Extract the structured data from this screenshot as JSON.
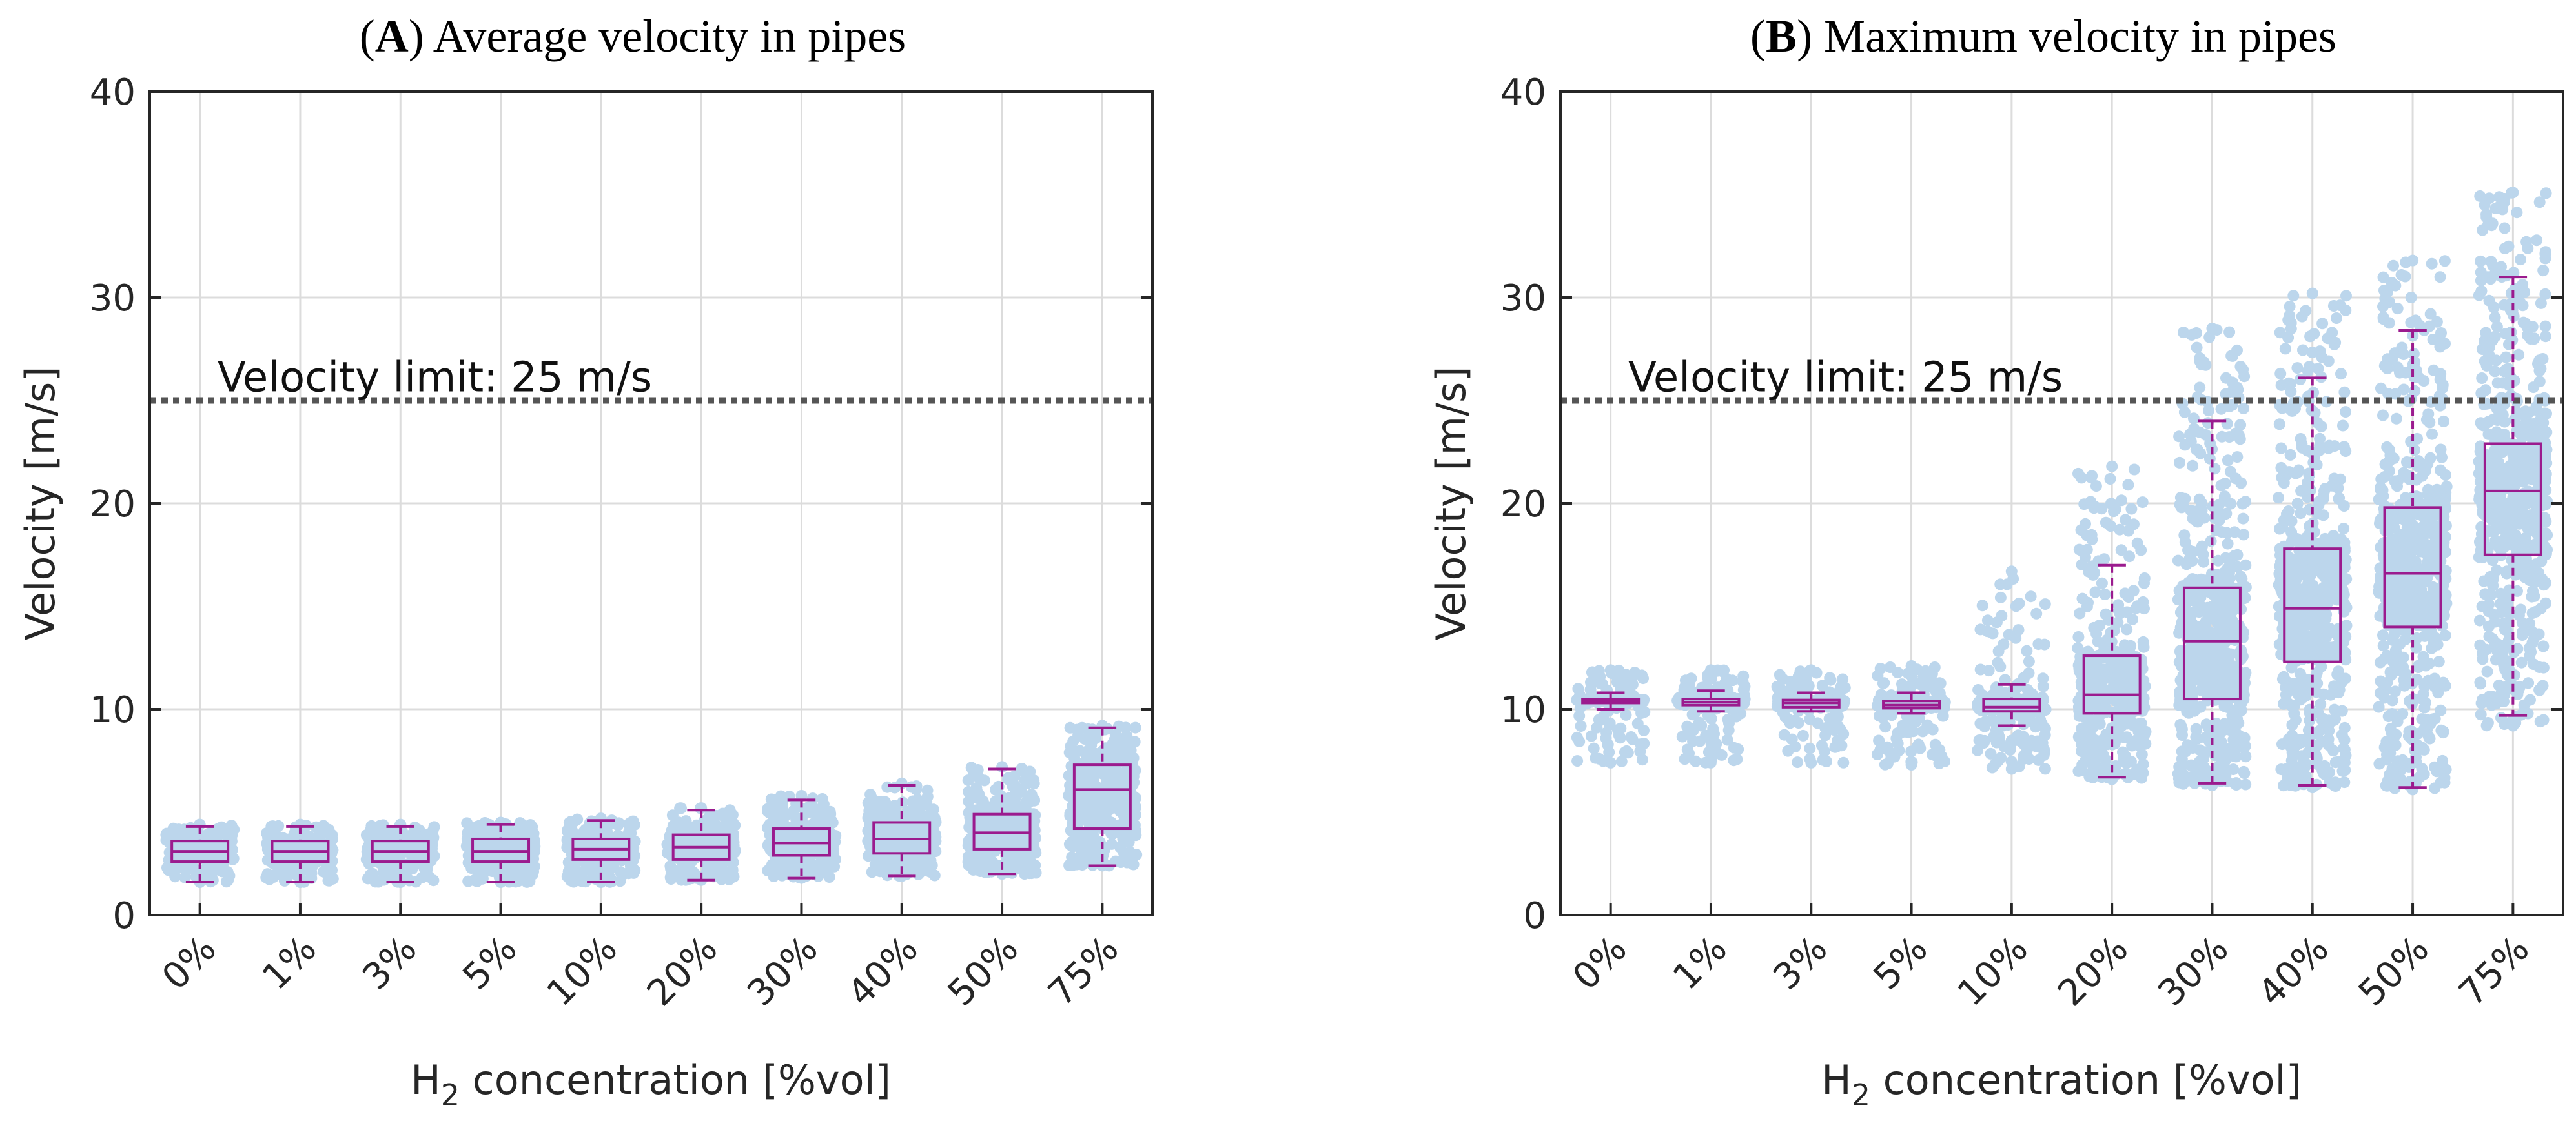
{
  "chart_data": [
    {
      "type": "boxplot",
      "panel_letter": "A",
      "title": "Average velocity in pipes",
      "ylabel": "Velocity [m/s]",
      "xlabel_main": "H",
      "xlabel_sub": "2",
      "xlabel_rest": " concentration [%vol]",
      "ylim": [
        0,
        40
      ],
      "yticks": [
        0,
        10,
        20,
        30,
        40
      ],
      "grid": true,
      "reference_line": {
        "label": "Velocity limit: 25 m/s",
        "value": 25,
        "style": "dotted"
      },
      "categories": [
        "0%",
        "1%",
        "3%",
        "5%",
        "10%",
        "20%",
        "30%",
        "40%",
        "50%",
        "75%"
      ],
      "boxes": [
        {
          "whisker_low": 1.6,
          "q1": 2.6,
          "median": 3.1,
          "q3": 3.6,
          "whisker_high": 4.3,
          "scatter_min": 1.6,
          "scatter_max": 4.4
        },
        {
          "whisker_low": 1.6,
          "q1": 2.6,
          "median": 3.1,
          "q3": 3.6,
          "whisker_high": 4.3,
          "scatter_min": 1.6,
          "scatter_max": 4.4
        },
        {
          "whisker_low": 1.6,
          "q1": 2.6,
          "median": 3.1,
          "q3": 3.6,
          "whisker_high": 4.3,
          "scatter_min": 1.6,
          "scatter_max": 4.4
        },
        {
          "whisker_low": 1.6,
          "q1": 2.6,
          "median": 3.1,
          "q3": 3.7,
          "whisker_high": 4.4,
          "scatter_min": 1.6,
          "scatter_max": 4.5
        },
        {
          "whisker_low": 1.6,
          "q1": 2.7,
          "median": 3.2,
          "q3": 3.7,
          "whisker_high": 4.6,
          "scatter_min": 1.6,
          "scatter_max": 4.7
        },
        {
          "whisker_low": 1.7,
          "q1": 2.7,
          "median": 3.3,
          "q3": 3.9,
          "whisker_high": 5.1,
          "scatter_min": 1.7,
          "scatter_max": 5.2
        },
        {
          "whisker_low": 1.8,
          "q1": 2.9,
          "median": 3.5,
          "q3": 4.2,
          "whisker_high": 5.6,
          "scatter_min": 1.8,
          "scatter_max": 5.8
        },
        {
          "whisker_low": 1.9,
          "q1": 3.0,
          "median": 3.7,
          "q3": 4.5,
          "whisker_high": 6.3,
          "scatter_min": 1.9,
          "scatter_max": 6.4
        },
        {
          "whisker_low": 2.0,
          "q1": 3.2,
          "median": 4.0,
          "q3": 4.9,
          "whisker_high": 7.1,
          "scatter_min": 2.0,
          "scatter_max": 7.2
        },
        {
          "whisker_low": 2.4,
          "q1": 4.2,
          "median": 6.1,
          "q3": 7.3,
          "whisker_high": 9.1,
          "scatter_min": 2.4,
          "scatter_max": 9.2
        }
      ]
    },
    {
      "type": "boxplot",
      "panel_letter": "B",
      "title": "Maximum velocity in pipes",
      "ylabel": "Velocity [m/s]",
      "xlabel_main": "H",
      "xlabel_sub": "2",
      "xlabel_rest": " concentration [%vol]",
      "ylim": [
        0,
        40
      ],
      "yticks": [
        0,
        10,
        20,
        30,
        40
      ],
      "grid": true,
      "reference_line": {
        "label": "Velocity limit: 25 m/s",
        "value": 25,
        "style": "dotted"
      },
      "categories": [
        "0%",
        "1%",
        "3%",
        "5%",
        "10%",
        "20%",
        "30%",
        "40%",
        "50%",
        "75%"
      ],
      "boxes": [
        {
          "whisker_low": 10.0,
          "q1": 10.3,
          "median": 10.4,
          "q3": 10.5,
          "whisker_high": 10.8,
          "scatter_min": 7.4,
          "scatter_max": 11.9
        },
        {
          "whisker_low": 9.9,
          "q1": 10.2,
          "median": 10.35,
          "q3": 10.5,
          "whisker_high": 10.9,
          "scatter_min": 7.4,
          "scatter_max": 11.9
        },
        {
          "whisker_low": 9.9,
          "q1": 10.1,
          "median": 10.3,
          "q3": 10.45,
          "whisker_high": 10.8,
          "scatter_min": 7.4,
          "scatter_max": 11.9
        },
        {
          "whisker_low": 9.8,
          "q1": 10.05,
          "median": 10.2,
          "q3": 10.4,
          "whisker_high": 10.8,
          "scatter_min": 7.3,
          "scatter_max": 12.1
        },
        {
          "whisker_low": 9.2,
          "q1": 9.9,
          "median": 10.1,
          "q3": 10.5,
          "whisker_high": 11.2,
          "scatter_min": 7.1,
          "scatter_max": 16.7
        },
        {
          "whisker_low": 6.7,
          "q1": 9.8,
          "median": 10.7,
          "q3": 12.6,
          "whisker_high": 17.0,
          "scatter_min": 6.6,
          "scatter_max": 21.8
        },
        {
          "whisker_low": 6.4,
          "q1": 10.5,
          "median": 13.3,
          "q3": 15.9,
          "whisker_high": 24.0,
          "scatter_min": 6.3,
          "scatter_max": 28.5
        },
        {
          "whisker_low": 6.3,
          "q1": 12.3,
          "median": 14.9,
          "q3": 17.8,
          "whisker_high": 26.1,
          "scatter_min": 6.2,
          "scatter_max": 30.2
        },
        {
          "whisker_low": 6.2,
          "q1": 14.0,
          "median": 16.6,
          "q3": 19.8,
          "whisker_high": 28.4,
          "scatter_min": 6.1,
          "scatter_max": 31.8
        },
        {
          "whisker_low": 9.7,
          "q1": 17.5,
          "median": 20.6,
          "q3": 22.9,
          "whisker_high": 31.0,
          "scatter_min": 9.2,
          "scatter_max": 35.1
        }
      ]
    }
  ],
  "colors": {
    "scatter": "#bcd6ec",
    "box": "#9b1b8e",
    "limit_line": "#555555",
    "grid": "#dcdcdc",
    "axis": "#262626"
  }
}
